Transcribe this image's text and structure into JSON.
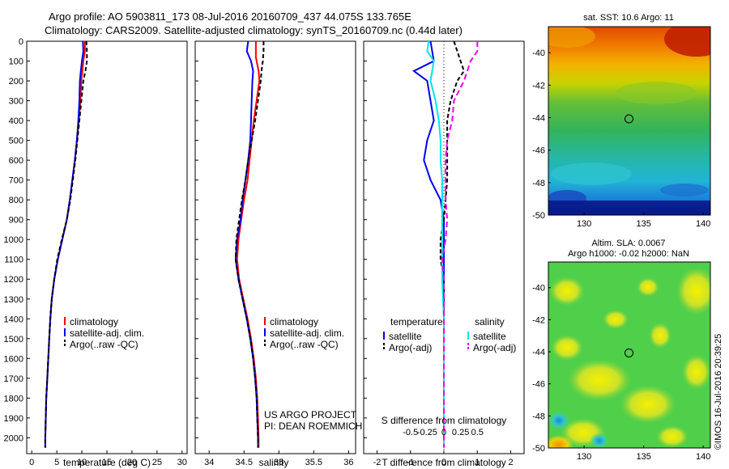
{
  "header": {
    "line1": "Argo profile: AO 5903811_173 08-Jul-2016 20160709_437 44.075S 133.765E",
    "line2": "Climatology: CARS2009. Satellite-adjusted climatology: synTS_20160709.nc (0.44d later)"
  },
  "watermark": "©IMOS 16-Jul-2016 20:39:25",
  "colors": {
    "climatology": "#ff0000",
    "satellite": "#0000ee",
    "argo": "#000000",
    "sal_satellite": "#00e5ee",
    "sal_argo": "#ee00ee"
  },
  "chart_data": [
    {
      "type": "line",
      "xlabel": "temperature (deg C)",
      "ylabel": "",
      "xlim": [
        -1,
        31
      ],
      "ylim": [
        2080,
        0
      ],
      "xticks": [
        "0",
        "5",
        "10",
        "15",
        "20",
        "25",
        "30"
      ],
      "yticks": [
        "0",
        "100",
        "200",
        "300",
        "400",
        "500",
        "600",
        "700",
        "800",
        "900",
        "1000",
        "1100",
        "1200",
        "1300",
        "1400",
        "1500",
        "1600",
        "1700",
        "1800",
        "1900",
        "2000"
      ],
      "legend": [
        "climatology",
        "satellite-adj. clim.",
        "Argo(..raw -QC)"
      ],
      "legend_position": "lower-center",
      "series": [
        {
          "name": "climatology",
          "points": [
            [
              10.6,
              0
            ],
            [
              10.6,
              50
            ],
            [
              10.3,
              100
            ],
            [
              10.1,
              150
            ],
            [
              9.9,
              200
            ],
            [
              9.7,
              300
            ],
            [
              9.4,
              400
            ],
            [
              9.0,
              500
            ],
            [
              8.6,
              600
            ],
            [
              8.1,
              700
            ],
            [
              7.6,
              800
            ],
            [
              7.0,
              900
            ],
            [
              6.1,
              1000
            ],
            [
              5.2,
              1100
            ],
            [
              4.5,
              1200
            ],
            [
              4.0,
              1300
            ],
            [
              3.7,
              1400
            ],
            [
              3.5,
              1500
            ],
            [
              3.3,
              1600
            ],
            [
              3.1,
              1700
            ],
            [
              2.9,
              1800
            ],
            [
              2.8,
              1900
            ],
            [
              2.7,
              2000
            ],
            [
              2.7,
              2050
            ]
          ]
        },
        {
          "name": "satellite-adj. clim.",
          "points": [
            [
              10.2,
              0
            ],
            [
              10.3,
              50
            ],
            [
              10.0,
              100
            ],
            [
              9.8,
              150
            ],
            [
              9.6,
              200
            ],
            [
              9.5,
              300
            ],
            [
              9.3,
              400
            ],
            [
              9.0,
              500
            ],
            [
              8.6,
              600
            ],
            [
              8.1,
              700
            ],
            [
              7.6,
              800
            ],
            [
              7.0,
              900
            ],
            [
              6.1,
              1000
            ],
            [
              5.2,
              1100
            ],
            [
              4.5,
              1200
            ],
            [
              4.0,
              1300
            ],
            [
              3.7,
              1400
            ],
            [
              3.5,
              1500
            ],
            [
              3.3,
              1600
            ],
            [
              3.1,
              1700
            ],
            [
              2.9,
              1800
            ],
            [
              2.8,
              1900
            ],
            [
              2.7,
              2000
            ],
            [
              2.7,
              2050
            ]
          ]
        },
        {
          "name": "Argo(..raw -QC)",
          "points": [
            [
              10.9,
              0
            ],
            [
              11.0,
              50
            ],
            [
              11.0,
              100
            ],
            [
              10.7,
              150
            ],
            [
              10.3,
              200
            ],
            [
              9.9,
              300
            ],
            [
              9.5,
              400
            ],
            [
              9.1,
              500
            ],
            [
              8.7,
              600
            ],
            [
              8.2,
              700
            ],
            [
              7.7,
              800
            ],
            [
              7.0,
              900
            ],
            [
              6.0,
              1000
            ],
            [
              5.1,
              1100
            ],
            [
              4.5,
              1200
            ],
            [
              4.0,
              1300
            ],
            [
              3.7,
              1400
            ],
            [
              3.5,
              1500
            ],
            [
              3.3,
              1600
            ],
            [
              3.1,
              1700
            ],
            [
              2.9,
              1800
            ],
            [
              2.8,
              1900
            ],
            [
              2.7,
              2000
            ],
            [
              2.7,
              2050
            ]
          ]
        }
      ]
    },
    {
      "type": "line",
      "xlabel": "salinity",
      "xlim": [
        33.8,
        36.1
      ],
      "ylim": [
        2080,
        0
      ],
      "xticks": [
        "34",
        "34.5",
        "35",
        "35.5",
        "36"
      ],
      "legend": [
        "climatology",
        "satellite-adj. clim.",
        "Argo(..raw -QC)"
      ],
      "legend_position": "lower-right",
      "annotation": [
        "US ARGO PROJECT",
        "PI: DEAN ROEMMICH"
      ],
      "series": [
        {
          "name": "climatology",
          "points": [
            [
              34.67,
              0
            ],
            [
              34.67,
              80
            ],
            [
              34.68,
              100
            ],
            [
              34.71,
              150
            ],
            [
              34.72,
              200
            ],
            [
              34.68,
              300
            ],
            [
              34.64,
              400
            ],
            [
              34.61,
              500
            ],
            [
              34.58,
              600
            ],
            [
              34.55,
              700
            ],
            [
              34.5,
              800
            ],
            [
              34.46,
              900
            ],
            [
              34.42,
              1000
            ],
            [
              34.4,
              1100
            ],
            [
              34.43,
              1200
            ],
            [
              34.49,
              1300
            ],
            [
              34.55,
              1400
            ],
            [
              34.6,
              1500
            ],
            [
              34.64,
              1600
            ],
            [
              34.67,
              1700
            ],
            [
              34.69,
              1800
            ],
            [
              34.7,
              1900
            ],
            [
              34.71,
              2000
            ],
            [
              34.71,
              2050
            ]
          ]
        },
        {
          "name": "satellite-adj. clim.",
          "points": [
            [
              34.56,
              0
            ],
            [
              34.54,
              50
            ],
            [
              34.6,
              100
            ],
            [
              34.63,
              150
            ],
            [
              34.62,
              200
            ],
            [
              34.61,
              300
            ],
            [
              34.6,
              400
            ],
            [
              34.59,
              500
            ],
            [
              34.56,
              600
            ],
            [
              34.52,
              700
            ],
            [
              34.48,
              800
            ],
            [
              34.45,
              900
            ],
            [
              34.4,
              1000
            ],
            [
              34.38,
              1100
            ],
            [
              34.42,
              1200
            ],
            [
              34.48,
              1300
            ],
            [
              34.54,
              1400
            ],
            [
              34.59,
              1500
            ],
            [
              34.63,
              1600
            ],
            [
              34.66,
              1700
            ],
            [
              34.68,
              1800
            ],
            [
              34.69,
              1900
            ],
            [
              34.7,
              2000
            ],
            [
              34.7,
              2050
            ]
          ]
        },
        {
          "name": "Argo(..raw -QC)",
          "points": [
            [
              34.78,
              0
            ],
            [
              34.78,
              50
            ],
            [
              34.77,
              100
            ],
            [
              34.75,
              150
            ],
            [
              34.74,
              200
            ],
            [
              34.7,
              300
            ],
            [
              34.66,
              400
            ],
            [
              34.61,
              500
            ],
            [
              34.56,
              600
            ],
            [
              34.52,
              700
            ],
            [
              34.47,
              800
            ],
            [
              34.43,
              900
            ],
            [
              34.39,
              1000
            ],
            [
              34.38,
              1100
            ],
            [
              34.42,
              1200
            ],
            [
              34.48,
              1300
            ],
            [
              34.54,
              1400
            ],
            [
              34.59,
              1500
            ],
            [
              34.63,
              1600
            ],
            [
              34.66,
              1700
            ],
            [
              34.68,
              1800
            ],
            [
              34.69,
              1900
            ],
            [
              34.7,
              2000
            ],
            [
              34.7,
              2050
            ]
          ]
        }
      ]
    },
    {
      "type": "line",
      "xlabel": "T difference from climatology",
      "x2label": "S difference from climatology",
      "xlim": [
        -2.4,
        2.4
      ],
      "ylim": [
        2080,
        0
      ],
      "xticks": [
        "-2",
        "-1",
        "0",
        "1",
        "2"
      ],
      "x2ticks": [
        "-0.5",
        "-0.25",
        "0",
        "0.25",
        "0.5"
      ],
      "legend_titles": [
        "temperature",
        "salinity"
      ],
      "legend": [
        "satellite",
        "Argo(-adj)",
        "satellite",
        "Argo(-adj)"
      ],
      "legend_position": "lower-center",
      "series": [
        {
          "name": "satellite",
          "group": "temperature",
          "points": [
            [
              -0.4,
              0
            ],
            [
              -0.3,
              100
            ],
            [
              -0.9,
              150
            ],
            [
              -0.5,
              200
            ],
            [
              -0.4,
              300
            ],
            [
              -0.3,
              400
            ],
            [
              -0.5,
              500
            ],
            [
              -0.6,
              600
            ],
            [
              -0.4,
              700
            ],
            [
              -0.1,
              800
            ],
            [
              0.0,
              900
            ],
            [
              0.0,
              1000
            ],
            [
              0.0,
              1100
            ],
            [
              0.0,
              1200
            ],
            [
              0.0,
              1300
            ],
            [
              0.0,
              1400
            ],
            [
              0.0,
              1600
            ],
            [
              0.0,
              2050
            ]
          ]
        },
        {
          "name": "Argo(-adj)",
          "group": "temperature",
          "points": [
            [
              0.3,
              0
            ],
            [
              0.4,
              50
            ],
            [
              0.5,
              100
            ],
            [
              0.6,
              150
            ],
            [
              0.4,
              200
            ],
            [
              0.2,
              300
            ],
            [
              0.1,
              400
            ],
            [
              0.1,
              500
            ],
            [
              0.1,
              600
            ],
            [
              0.1,
              700
            ],
            [
              0.05,
              800
            ],
            [
              0.0,
              900
            ],
            [
              -0.1,
              1000
            ],
            [
              -0.1,
              1100
            ],
            [
              0.0,
              1200
            ],
            [
              0.0,
              1300
            ],
            [
              0.0,
              1400
            ],
            [
              0.0,
              1600
            ],
            [
              0.0,
              2050
            ]
          ]
        },
        {
          "name": "satellite",
          "group": "salinity",
          "points": [
            [
              -0.45,
              0
            ],
            [
              -0.5,
              50
            ],
            [
              -0.3,
              100
            ],
            [
              -0.35,
              150
            ],
            [
              -0.4,
              200
            ],
            [
              -0.25,
              300
            ],
            [
              -0.15,
              400
            ],
            [
              -0.1,
              500
            ],
            [
              -0.1,
              600
            ],
            [
              -0.05,
              700
            ],
            [
              -0.05,
              800
            ],
            [
              -0.05,
              900
            ],
            [
              -0.05,
              1000
            ],
            [
              -0.05,
              1200
            ],
            [
              0.0,
              1400
            ],
            [
              0.0,
              1600
            ],
            [
              0.0,
              2050
            ]
          ]
        },
        {
          "name": "Argo(-adj)",
          "group": "salinity",
          "points": [
            [
              1.0,
              0
            ],
            [
              1.0,
              50
            ],
            [
              0.8,
              100
            ],
            [
              0.7,
              150
            ],
            [
              0.6,
              200
            ],
            [
              0.3,
              300
            ],
            [
              0.25,
              400
            ],
            [
              0.1,
              500
            ],
            [
              0.05,
              600
            ],
            [
              0.05,
              700
            ],
            [
              0.05,
              800
            ],
            [
              0.1,
              900
            ],
            [
              0.05,
              1000
            ],
            [
              -0.05,
              1100
            ],
            [
              0.0,
              1200
            ],
            [
              0.0,
              1300
            ],
            [
              0.0,
              1400
            ],
            [
              0.0,
              1600
            ],
            [
              0.0,
              2050
            ]
          ]
        }
      ]
    },
    {
      "type": "heatmap",
      "title": "sat. SST: 10.6 Argo: 11",
      "xlim": [
        127,
        140.6
      ],
      "ylim": [
        -50,
        -38.4
      ],
      "xticks": [
        "130",
        "135",
        "140"
      ],
      "yticks": [
        "-40",
        "-42",
        "-44",
        "-46",
        "-48",
        "-50"
      ],
      "marker": {
        "lon": 133.765,
        "lat": -44.075
      }
    },
    {
      "type": "heatmap",
      "title": "Altim. SLA: 0.0067",
      "subtitle": "Argo h1000: -0.02 h2000: NaN",
      "xlim": [
        127,
        140.6
      ],
      "ylim": [
        -50,
        -38.4
      ],
      "xticks": [
        "130",
        "135",
        "140"
      ],
      "yticks": [
        "-40",
        "-42",
        "-44",
        "-46",
        "-48",
        "-50"
      ],
      "marker": {
        "lon": 133.765,
        "lat": -44.075
      }
    }
  ]
}
